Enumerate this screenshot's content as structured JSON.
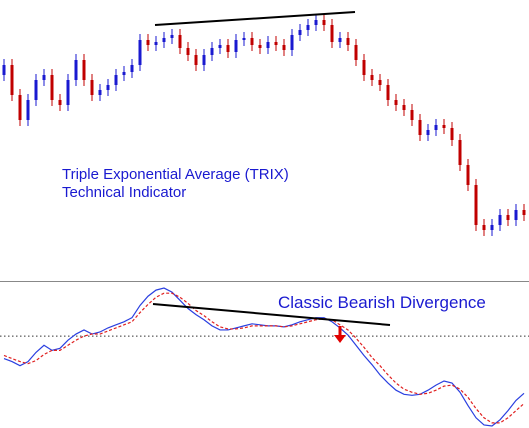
{
  "chart_data": [
    {
      "type": "candlestick",
      "annotation_lines": [
        "Triple Exponential Average (TRIX)",
        "Technical Indicator"
      ],
      "up_color": "#1a1ad0",
      "down_color": "#c00000",
      "ylim": [
        0,
        280
      ],
      "open": [
        205,
        215,
        185,
        160,
        180,
        200,
        205,
        180,
        175,
        200,
        220,
        200,
        185,
        190,
        195,
        205,
        208,
        215,
        240,
        235,
        238,
        242,
        245,
        232,
        225,
        215,
        225,
        232,
        235,
        228,
        240,
        242,
        235,
        232,
        238,
        235,
        230,
        245,
        250,
        255,
        260,
        255,
        238,
        242,
        235,
        220,
        205,
        200,
        195,
        180,
        175,
        170,
        160,
        145,
        150,
        155,
        152,
        140,
        115,
        95,
        55,
        50,
        55,
        65,
        60,
        70
      ],
      "high": [
        221,
        221,
        191,
        186,
        206,
        211,
        211,
        186,
        206,
        226,
        226,
        206,
        196,
        201,
        211,
        214,
        221,
        246,
        246,
        244,
        248,
        251,
        251,
        238,
        231,
        231,
        238,
        241,
        241,
        246,
        248,
        248,
        241,
        244,
        244,
        241,
        251,
        256,
        261,
        266,
        266,
        261,
        248,
        248,
        241,
        226,
        211,
        206,
        201,
        186,
        181,
        176,
        166,
        156,
        161,
        161,
        158,
        146,
        121,
        101,
        61,
        61,
        71,
        71,
        76,
        76
      ],
      "low": [
        199,
        179,
        154,
        154,
        174,
        194,
        174,
        169,
        169,
        194,
        194,
        179,
        179,
        184,
        189,
        199,
        202,
        209,
        229,
        229,
        232,
        236,
        226,
        219,
        209,
        209,
        219,
        226,
        222,
        222,
        234,
        229,
        226,
        226,
        229,
        224,
        224,
        239,
        244,
        249,
        249,
        232,
        232,
        229,
        214,
        199,
        194,
        189,
        174,
        169,
        164,
        154,
        139,
        139,
        144,
        146,
        134,
        109,
        89,
        49,
        44,
        44,
        49,
        54,
        54,
        59
      ],
      "close": [
        215,
        185,
        160,
        180,
        200,
        205,
        180,
        175,
        200,
        220,
        200,
        185,
        190,
        195,
        205,
        208,
        215,
        240,
        235,
        238,
        242,
        245,
        232,
        225,
        215,
        225,
        232,
        235,
        228,
        240,
        242,
        235,
        232,
        238,
        235,
        230,
        245,
        250,
        255,
        260,
        255,
        238,
        242,
        235,
        220,
        205,
        200,
        195,
        180,
        175,
        170,
        160,
        145,
        150,
        155,
        152,
        140,
        115,
        95,
        55,
        50,
        55,
        65,
        60,
        70,
        65
      ]
    },
    {
      "type": "line",
      "annotation": "Classic Bearish Divergence",
      "ylim": [
        -0.9,
        0.5
      ],
      "hline": 0,
      "series": [
        {
          "color": "#2a3fe0",
          "dash": false,
          "values": [
            -0.22,
            -0.25,
            -0.29,
            -0.25,
            -0.16,
            -0.09,
            -0.14,
            -0.12,
            -0.04,
            0.02,
            0.06,
            0.02,
            0.04,
            0.08,
            0.11,
            0.14,
            0.18,
            0.3,
            0.39,
            0.45,
            0.47,
            0.43,
            0.35,
            0.27,
            0.21,
            0.16,
            0.1,
            0.06,
            0.06,
            0.08,
            0.1,
            0.12,
            0.11,
            0.1,
            0.1,
            0.09,
            0.11,
            0.14,
            0.16,
            0.18,
            0.18,
            0.14,
            0.08,
            0.01,
            -0.09,
            -0.19,
            -0.28,
            -0.38,
            -0.46,
            -0.53,
            -0.57,
            -0.58,
            -0.57,
            -0.53,
            -0.48,
            -0.44,
            -0.46,
            -0.55,
            -0.68,
            -0.8,
            -0.87,
            -0.88,
            -0.82,
            -0.73,
            -0.63,
            -0.56
          ]
        },
        {
          "color": "#e02020",
          "dash": true,
          "values": [
            -0.19,
            -0.22,
            -0.25,
            -0.27,
            -0.24,
            -0.18,
            -0.14,
            -0.14,
            -0.09,
            -0.04,
            0,
            0.02,
            0.02,
            0.05,
            0.08,
            0.11,
            0.14,
            0.23,
            0.31,
            0.38,
            0.42,
            0.42,
            0.38,
            0.32,
            0.25,
            0.2,
            0.14,
            0.09,
            0.07,
            0.07,
            0.08,
            0.1,
            0.1,
            0.1,
            0.1,
            0.09,
            0.1,
            0.12,
            0.14,
            0.16,
            0.17,
            0.16,
            0.11,
            0.06,
            -0.02,
            -0.11,
            -0.21,
            -0.29,
            -0.38,
            -0.46,
            -0.52,
            -0.55,
            -0.57,
            -0.56,
            -0.53,
            -0.49,
            -0.48,
            -0.52,
            -0.6,
            -0.71,
            -0.8,
            -0.85,
            -0.85,
            -0.8,
            -0.73,
            -0.66
          ]
        }
      ]
    }
  ]
}
